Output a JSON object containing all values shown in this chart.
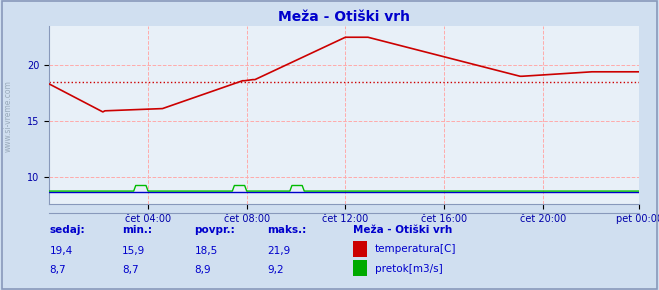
{
  "title": "Meža - Otiški vrh",
  "bg_color": "#d0dff0",
  "plot_bg_color": "#e8f0f8",
  "grid_color": "#ffaaaa",
  "title_color": "#0000cc",
  "axis_label_color": "#0000aa",
  "watermark": "www.si-vreme.com",
  "x_tick_labels": [
    "čet 04:00",
    "čet 08:00",
    "čet 12:00",
    "čet 16:00",
    "čet 20:00",
    "pet 00:00"
  ],
  "x_tick_positions": [
    48,
    96,
    144,
    192,
    240,
    287
  ],
  "ylim": [
    7.5,
    23.5
  ],
  "yticks": [
    10,
    15,
    20
  ],
  "avg_line": 18.5,
  "temp_color": "#cc0000",
  "flow_color": "#00bb00",
  "height_color": "#0000cc",
  "n_points": 288,
  "flow_spikes": [
    {
      "start": 42,
      "end": 48,
      "value": 9.2
    },
    {
      "start": 90,
      "end": 96,
      "value": 9.2
    },
    {
      "start": 118,
      "end": 124,
      "value": 9.2
    }
  ],
  "flow_base": 8.7,
  "height_base": 8.65,
  "bottom_labels": {
    "headers": [
      "sedaj:",
      "min.:",
      "povpr.:",
      "maks.:",
      "Meža - Otiški vrh"
    ],
    "row1_values": [
      "19,4",
      "15,9",
      "18,5",
      "21,9"
    ],
    "row2_values": [
      "8,7",
      "8,7",
      "8,9",
      "9,2"
    ],
    "legend1_color": "#cc0000",
    "legend1_label": "temperatura[C]",
    "legend2_color": "#00aa00",
    "legend2_label": "pretok[m3/s]"
  }
}
